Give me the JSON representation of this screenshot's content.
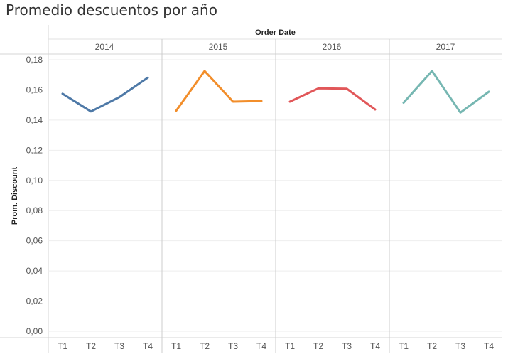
{
  "chart_data": {
    "type": "line",
    "title": "Promedio descuentos por año",
    "column_header": "Order Date",
    "ylabel": "Prom. Discount",
    "ylim": [
      0,
      0.18
    ],
    "y_ticks": [
      "0,00",
      "0,02",
      "0,04",
      "0,06",
      "0,08",
      "0,10",
      "0,12",
      "0,14",
      "0,16",
      "0,18"
    ],
    "y_tick_values": [
      0,
      0.02,
      0.04,
      0.06,
      0.08,
      0.1,
      0.12,
      0.14,
      0.16,
      0.18
    ],
    "categories": [
      "T1",
      "T2",
      "T3",
      "T4"
    ],
    "grid": true,
    "series": [
      {
        "year": "2014",
        "color": "#4e79a7",
        "values": [
          0.1575,
          0.1457,
          0.1552,
          0.1681
        ]
      },
      {
        "year": "2015",
        "color": "#f28e2b",
        "values": [
          0.1462,
          0.1725,
          0.1522,
          0.1526
        ]
      },
      {
        "year": "2016",
        "color": "#e15759",
        "values": [
          0.1522,
          0.161,
          0.1608,
          0.147
        ]
      },
      {
        "year": "2017",
        "color": "#76b7b2",
        "values": [
          0.1515,
          0.1725,
          0.145,
          0.1588
        ]
      }
    ]
  }
}
